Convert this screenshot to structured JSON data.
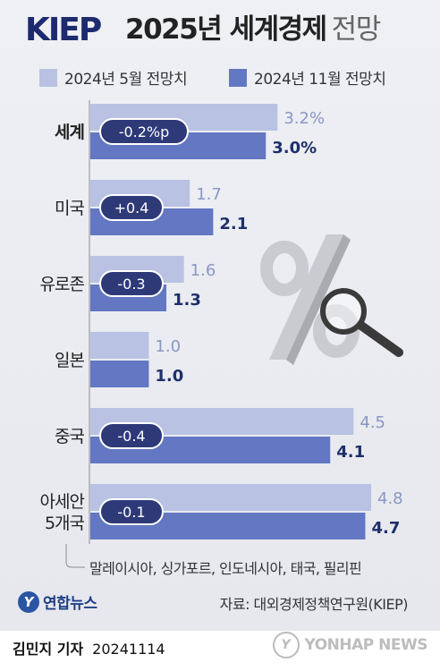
{
  "header": {
    "logo": "KIEP",
    "title_main": "2025년 세계경제",
    "title_light": "전망"
  },
  "legend": [
    {
      "label": "2024년 5월 전망치",
      "color": "#b9c2e2"
    },
    {
      "label": "2024년 11월 전망치",
      "color": "#6477c2"
    }
  ],
  "chart_data": {
    "type": "bar",
    "orientation": "horizontal",
    "categories": [
      "세계",
      "미국",
      "유로존",
      "일본",
      "중국",
      "아세안 5개국"
    ],
    "category_lines": [
      [
        "세계"
      ],
      [
        "미국"
      ],
      [
        "유로존"
      ],
      [
        "일본"
      ],
      [
        "중국"
      ],
      [
        "아세안",
        "5개국"
      ]
    ],
    "series": [
      {
        "name": "2024년 5월 전망치",
        "values": [
          3.2,
          1.7,
          1.6,
          1.0,
          4.5,
          4.8
        ]
      },
      {
        "name": "2024년 11월 전망치",
        "values": [
          3.0,
          2.1,
          1.3,
          1.0,
          4.1,
          4.7
        ]
      }
    ],
    "value_labels": [
      [
        "3.2%",
        "1.7",
        "1.6",
        "1.0",
        "4.5",
        "4.8"
      ],
      [
        "3.0%",
        "2.1",
        "1.3",
        "1.0",
        "4.1",
        "4.7"
      ]
    ],
    "changes": [
      "-0.2%p",
      "+0.4",
      "-0.3",
      "",
      "-0.4",
      "-0.1"
    ],
    "xlim": [
      0,
      4.8
    ],
    "title": "2025년 세계경제 전망"
  },
  "footnote": "말레이시아, 싱가포르, 인도네시아, 태국, 필리핀",
  "brand": {
    "mark": "Y",
    "text": "연합뉴스"
  },
  "source": "자료: 대외경제정책연구원(KIEP)",
  "byline": {
    "name": "김민지 기자",
    "date": "20241114"
  },
  "watermark": {
    "mark": "Y",
    "text": "YONHAP NEWS"
  },
  "colors": {
    "may_bar": "#b9c2e2",
    "nov_bar": "#6477c2",
    "pill": "#2e3a78",
    "divider": "#8c8c8c"
  }
}
